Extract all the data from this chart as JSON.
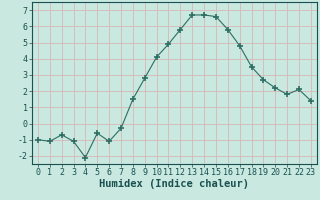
{
  "x": [
    0,
    1,
    2,
    3,
    4,
    5,
    6,
    7,
    8,
    9,
    10,
    11,
    12,
    13,
    14,
    15,
    16,
    17,
    18,
    19,
    20,
    21,
    22,
    23
  ],
  "y": [
    -1.0,
    -1.1,
    -0.7,
    -1.1,
    -2.1,
    -0.6,
    -1.1,
    -0.3,
    1.5,
    2.8,
    4.1,
    4.9,
    5.8,
    6.7,
    6.7,
    6.6,
    5.8,
    4.8,
    3.5,
    2.7,
    2.2,
    1.8,
    2.1,
    1.4
  ],
  "line_color": "#2e6e62",
  "marker": "+",
  "marker_size": 4,
  "bg_color": "#c8e8e0",
  "grid_color": "#d8b8b8",
  "xlabel": "Humidex (Indice chaleur)",
  "ylim": [
    -2.5,
    7.5
  ],
  "xlim": [
    -0.5,
    23.5
  ],
  "yticks": [
    -2,
    -1,
    0,
    1,
    2,
    3,
    4,
    5,
    6,
    7
  ],
  "xticks": [
    0,
    1,
    2,
    3,
    4,
    5,
    6,
    7,
    8,
    9,
    10,
    11,
    12,
    13,
    14,
    15,
    16,
    17,
    18,
    19,
    20,
    21,
    22,
    23
  ],
  "tick_fontsize": 6,
  "xlabel_fontsize": 7.5,
  "xlabel_fontweight": "bold",
  "tick_color": "#1a5050",
  "spine_color": "#1a5050"
}
